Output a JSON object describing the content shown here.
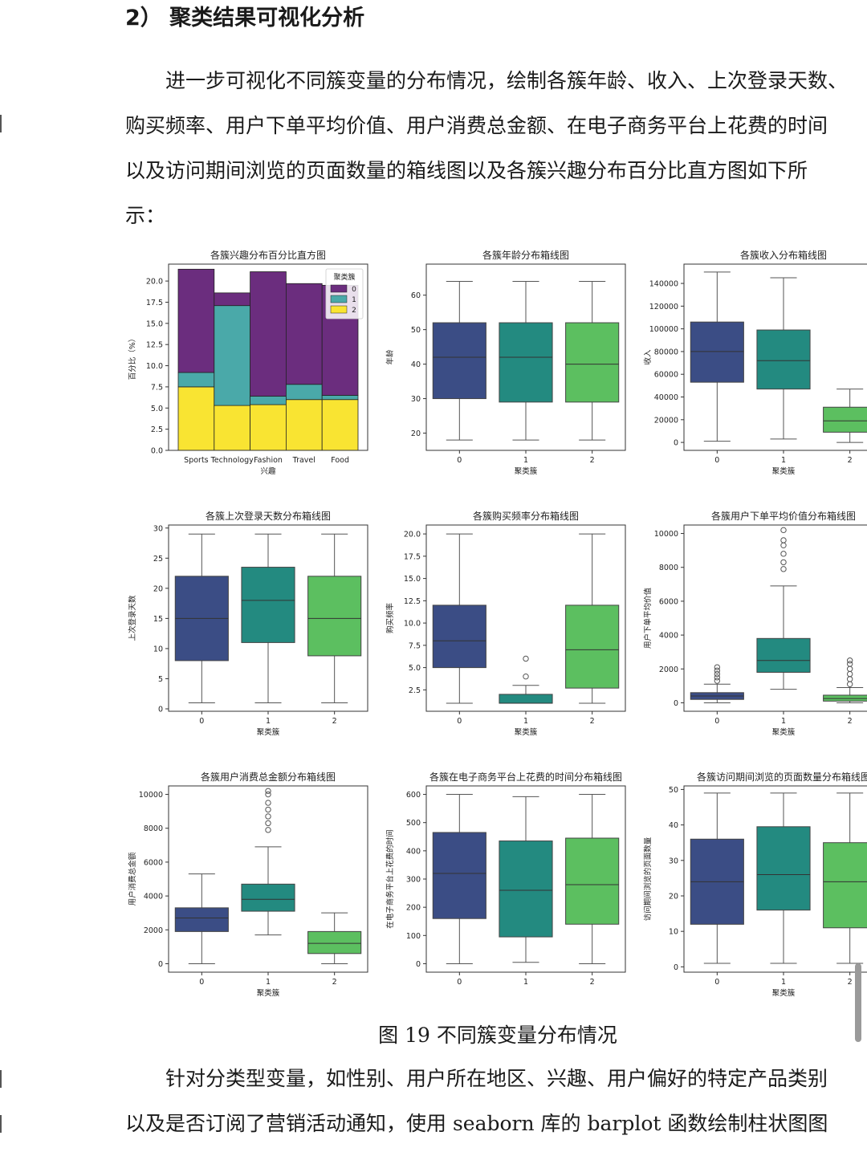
{
  "heading": "2） 聚类结果可视化分析",
  "intro_lines": [
    "　　进一步可视化不同簇变量的分布情况，绘制各簇年龄、收入、上次登录天数、",
    "购买频率、用户下单平均价值、用户消费总金额、在电子商务平台上花费的时间",
    "以及访问期间浏览的页面数量的箱线图以及各簇兴趣分布百分比直方图如下所",
    "示："
  ],
  "figure_caption": "图 19  不同簇变量分布情况",
  "outro_lines": [
    "　　针对分类型变量，如性别、用户所在地区、兴趣、用户偏好的特定产品类别",
    "以及是否订阅了营销活动通知，使用 seaborn 库的 barplot 函数绘制柱状图图"
  ],
  "palette": [
    "#3b4d85",
    "#238a80",
    "#5cbf60"
  ],
  "interest_palette": [
    "#6b2d7e",
    "#4aa9a9",
    "#f9e432"
  ],
  "chart_data": [
    {
      "type": "bar",
      "title": "各簇兴趣分布百分比直方图",
      "xlabel": "兴趣",
      "ylabel": "百分比（%）",
      "categories": [
        "Sports",
        "Technology",
        "Fashion",
        "Travel",
        "Food"
      ],
      "series": [
        {
          "name": "2",
          "values": [
            7.5,
            5.3,
            5.4,
            6.0,
            6.0
          ]
        },
        {
          "name": "1",
          "values": [
            1.7,
            11.8,
            1.0,
            1.8,
            0.5
          ]
        },
        {
          "name": "0",
          "values": [
            12.2,
            1.5,
            14.7,
            11.9,
            13.0
          ]
        }
      ],
      "stacked": true,
      "ylim": [
        0,
        22
      ],
      "yticks": [
        0.0,
        2.5,
        5.0,
        7.5,
        10.0,
        12.5,
        15.0,
        17.5,
        20.0
      ],
      "legend": {
        "title": "聚类簇",
        "labels": [
          "0",
          "1",
          "2"
        ],
        "placement": "top-right"
      }
    },
    {
      "type": "box",
      "title": "各簇年龄分布箱线图",
      "xlabel": "聚类簇",
      "ylabel": "年龄",
      "categories": [
        "0",
        "1",
        "2"
      ],
      "ylim": [
        15,
        69
      ],
      "yticks": [
        20,
        30,
        40,
        50,
        60
      ],
      "boxes": [
        {
          "min": 18,
          "q1": 30,
          "median": 42,
          "q3": 52,
          "max": 64,
          "outliers": []
        },
        {
          "min": 18,
          "q1": 29,
          "median": 42,
          "q3": 52,
          "max": 64,
          "outliers": []
        },
        {
          "min": 18,
          "q1": 29,
          "median": 40,
          "q3": 52,
          "max": 64,
          "outliers": []
        }
      ]
    },
    {
      "type": "box",
      "title": "各簇收入分布箱线图",
      "xlabel": "聚类簇",
      "ylabel": "收入",
      "categories": [
        "0",
        "1",
        "2"
      ],
      "ylim": [
        -7000,
        157000
      ],
      "yticks": [
        0,
        20000,
        40000,
        60000,
        80000,
        100000,
        120000,
        140000
      ],
      "boxes": [
        {
          "min": 1000,
          "q1": 53000,
          "median": 80000,
          "q3": 106000,
          "max": 150000,
          "outliers": []
        },
        {
          "min": 3000,
          "q1": 47000,
          "median": 72000,
          "q3": 99000,
          "max": 145000,
          "outliers": []
        },
        {
          "min": 0,
          "q1": 9000,
          "median": 19000,
          "q3": 31000,
          "max": 47000,
          "outliers": []
        }
      ]
    },
    {
      "type": "box",
      "title": "各簇上次登录天数分布箱线图",
      "xlabel": "聚类簇",
      "ylabel": "上次登录天数",
      "categories": [
        "0",
        "1",
        "2"
      ],
      "ylim": [
        -0.4,
        30.5
      ],
      "yticks": [
        0,
        5,
        10,
        15,
        20,
        25,
        30
      ],
      "boxes": [
        {
          "min": 1,
          "q1": 8,
          "median": 15,
          "q3": 22,
          "max": 29,
          "outliers": []
        },
        {
          "min": 1,
          "q1": 11,
          "median": 18,
          "q3": 23.5,
          "max": 29,
          "outliers": []
        },
        {
          "min": 1,
          "q1": 8.8,
          "median": 15,
          "q3": 22,
          "max": 29,
          "outliers": []
        }
      ]
    },
    {
      "type": "box",
      "title": "各簇购买频率分布箱线图",
      "xlabel": "聚类簇",
      "ylabel": "购买频率",
      "categories": [
        "0",
        "1",
        "2"
      ],
      "ylim": [
        0.1,
        21
      ],
      "yticks": [
        2.5,
        5.0,
        7.5,
        10.0,
        12.5,
        15.0,
        17.5,
        20.0
      ],
      "boxes": [
        {
          "min": 1,
          "q1": 5,
          "median": 8,
          "q3": 12,
          "max": 20,
          "outliers": []
        },
        {
          "min": 1,
          "q1": 1,
          "median": 1,
          "q3": 2,
          "max": 3,
          "outliers": [
            4,
            6
          ]
        },
        {
          "min": 1,
          "q1": 2.7,
          "median": 7,
          "q3": 12,
          "max": 20,
          "outliers": []
        }
      ]
    },
    {
      "type": "box",
      "title": "各簇用户下单平均价值分布箱线图",
      "xlabel": "聚类簇",
      "ylabel": "用户下单平均价值",
      "categories": [
        "0",
        "1",
        "2"
      ],
      "ylim": [
        -500,
        10500
      ],
      "yticks": [
        0,
        2000,
        4000,
        6000,
        8000,
        10000
      ],
      "boxes": [
        {
          "min": 0,
          "q1": 200,
          "median": 400,
          "q3": 600,
          "max": 1100,
          "outliers": [
            1300,
            1500,
            1700,
            1900,
            2100
          ]
        },
        {
          "min": 800,
          "q1": 1800,
          "median": 2500,
          "q3": 3800,
          "max": 6900,
          "outliers": [
            7900,
            8300,
            8800,
            9300,
            9600,
            10200
          ]
        },
        {
          "min": 0,
          "q1": 100,
          "median": 250,
          "q3": 450,
          "max": 900,
          "outliers": [
            1100,
            1400,
            1700,
            2000,
            2300,
            2500
          ]
        }
      ]
    },
    {
      "type": "box",
      "title": "各簇用户消费总金额分布箱线图",
      "xlabel": "聚类簇",
      "ylabel": "用户消费总金额",
      "categories": [
        "0",
        "1",
        "2"
      ],
      "ylim": [
        -500,
        10500
      ],
      "yticks": [
        0,
        2000,
        4000,
        6000,
        8000,
        10000
      ],
      "boxes": [
        {
          "min": 0,
          "q1": 1900,
          "median": 2700,
          "q3": 3300,
          "max": 5300,
          "outliers": []
        },
        {
          "min": 1700,
          "q1": 3100,
          "median": 3800,
          "q3": 4700,
          "max": 6900,
          "outliers": [
            7900,
            8300,
            8700,
            9100,
            9500,
            10000,
            10200
          ]
        },
        {
          "min": 0,
          "q1": 600,
          "median": 1200,
          "q3": 1900,
          "max": 3000,
          "outliers": []
        }
      ]
    },
    {
      "type": "box",
      "title": "各簇在电子商务平台上花费的时间分布箱线图",
      "xlabel": "",
      "ylabel": "在电子商务平台上花费的时间",
      "categories": [
        "0",
        "1",
        "2"
      ],
      "ylim": [
        -30,
        630
      ],
      "yticks": [
        0,
        100,
        200,
        300,
        400,
        500,
        600
      ],
      "boxes": [
        {
          "min": 0,
          "q1": 160,
          "median": 320,
          "q3": 465,
          "max": 600,
          "outliers": []
        },
        {
          "min": 5,
          "q1": 95,
          "median": 260,
          "q3": 435,
          "max": 592,
          "outliers": []
        },
        {
          "min": 0,
          "q1": 140,
          "median": 280,
          "q3": 445,
          "max": 600,
          "outliers": []
        }
      ]
    },
    {
      "type": "box",
      "title": "各簇访问期间浏览的页面数量分布箱线图",
      "xlabel": "聚类簇",
      "ylabel": "访问期间浏览的页面数量",
      "categories": [
        "0",
        "1",
        "2"
      ],
      "ylim": [
        -1.5,
        51
      ],
      "yticks": [
        0,
        10,
        20,
        30,
        40,
        50
      ],
      "boxes": [
        {
          "min": 1,
          "q1": 12,
          "median": 24,
          "q3": 36,
          "max": 49,
          "outliers": []
        },
        {
          "min": 1,
          "q1": 16,
          "median": 26,
          "q3": 39.5,
          "max": 49,
          "outliers": []
        },
        {
          "min": 1,
          "q1": 11,
          "median": 24,
          "q3": 35,
          "max": 49,
          "outliers": []
        }
      ]
    }
  ]
}
